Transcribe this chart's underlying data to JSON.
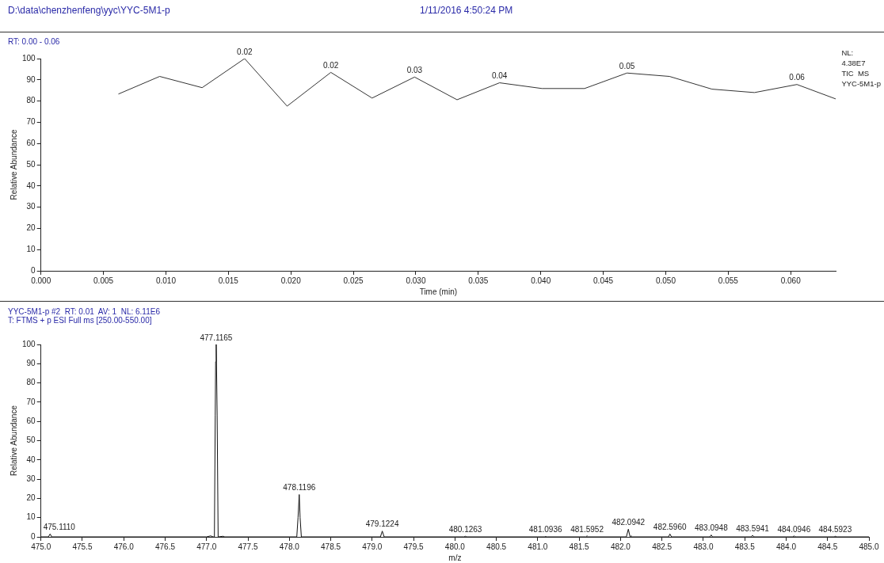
{
  "chart_data": [
    {
      "type": "line",
      "title": "D:\\data\\chenzhenfeng\\yyc\\YYC-5M1-p",
      "subtitle": "1/11/2016 4:50:24 PM",
      "xlabel": "Time (min)",
      "ylabel": "Relative Abundance",
      "x": [
        0.0062,
        0.0095,
        0.0129,
        0.0163,
        0.0197,
        0.0232,
        0.0265,
        0.0299,
        0.0333,
        0.0367,
        0.0401,
        0.0435,
        0.0469,
        0.0503,
        0.0537,
        0.0571,
        0.0605,
        0.0636
      ],
      "series": [
        {
          "color": "#333333",
          "values": [
            83.3,
            91.6,
            86.3,
            100,
            77.6,
            93.5,
            81.4,
            91.3,
            80.6,
            88.6,
            85.9,
            85.9,
            93.2,
            91.6,
            85.6,
            84,
            87.8,
            81
          ]
        }
      ],
      "xlim": [
        0,
        0.0636
      ],
      "xticks": [
        {
          "value": 0,
          "label": "0.000"
        },
        {
          "value": 0.005,
          "label": "0.005"
        },
        {
          "value": 0.01,
          "label": "0.010"
        },
        {
          "value": 0.015,
          "label": "0.015"
        },
        {
          "value": 0.02,
          "label": "0.020"
        },
        {
          "value": 0.025,
          "label": "0.025"
        },
        {
          "value": 0.03,
          "label": "0.030"
        },
        {
          "value": 0.035,
          "label": "0.035"
        },
        {
          "value": 0.04,
          "label": "0.040"
        },
        {
          "value": 0.045,
          "label": "0.045"
        },
        {
          "value": 0.05,
          "label": "0.050"
        },
        {
          "value": 0.055,
          "label": "0.055"
        },
        {
          "value": 0.06,
          "label": "0.060"
        }
      ],
      "ylim": [
        0,
        100
      ],
      "yticks": [
        0,
        10,
        20,
        30,
        40,
        50,
        60,
        70,
        80,
        90,
        100
      ],
      "grid": false,
      "legend": false,
      "marker": "none",
      "line_style": "solid",
      "annotations": [
        "RT: 0.00 - 0.06",
        "NL:\n4.38E7\nTIC  MS\nYYC-5M1-p",
        {
          "text": "0.02",
          "x": 0.0163,
          "y": 100
        },
        {
          "text": "0.02",
          "x": 0.0232,
          "y": 93.5
        },
        {
          "text": "0.03",
          "x": 0.0299,
          "y": 91.3
        },
        {
          "text": "0.04",
          "x": 0.0367,
          "y": 88.6
        },
        {
          "text": "0.05",
          "x": 0.0469,
          "y": 93.2
        },
        {
          "text": "0.06",
          "x": 0.0605,
          "y": 87.8
        }
      ]
    },
    {
      "type": "line",
      "title": "YYC-5M1-p #2  RT: 0.01  AV: 1  NL: 6.11E6",
      "subtitle": "T: FTMS + p ESI Full ms [250.00-550.00]",
      "xlabel": "m/z",
      "ylabel": "Relative Abundance",
      "x": [
        475.0,
        475.09,
        475.111,
        475.13,
        477.0,
        477.05,
        477.08,
        477.095,
        477.105,
        477.11,
        477.1165,
        477.12,
        477.128,
        477.14,
        477.2,
        477.22,
        478.09,
        478.105,
        478.1196,
        478.13,
        478.145,
        479.1,
        479.1224,
        479.145,
        480.11,
        480.1263,
        480.14,
        481.08,
        481.0936,
        481.11,
        481.58,
        481.5952,
        481.61,
        482.07,
        482.0942,
        482.115,
        482.13,
        482.145,
        482.58,
        482.596,
        482.615,
        483.08,
        483.0948,
        483.11,
        483.58,
        483.5941,
        483.61,
        484.08,
        484.0946,
        484.11,
        484.58,
        484.5923,
        484.61,
        485.0
      ],
      "series": [
        {
          "color": "#111111",
          "values": [
            0,
            0,
            1.5,
            0,
            0,
            0.5,
            0,
            0,
            63,
            91,
            100,
            91,
            63,
            0,
            0.3,
            0,
            0,
            10,
            22,
            10,
            0,
            0,
            3,
            0,
            0,
            0.3,
            0,
            0,
            0.2,
            0,
            0,
            0.5,
            0,
            0,
            4,
            0,
            0.5,
            0,
            0,
            1.5,
            0,
            0,
            1,
            0,
            0,
            0.8,
            0,
            0,
            0.5,
            0,
            0,
            0.3,
            0,
            0
          ]
        }
      ],
      "xlim": [
        475,
        485
      ],
      "xticks": [
        {
          "value": 475,
          "label": "475.0"
        },
        475.5,
        {
          "value": 476,
          "label": "476.0"
        },
        476.5,
        {
          "value": 477,
          "label": "477.0"
        },
        477.5,
        {
          "value": 478,
          "label": "478.0"
        },
        478.5,
        {
          "value": 479,
          "label": "479.0"
        },
        479.5,
        {
          "value": 480,
          "label": "480.0"
        },
        480.5,
        {
          "value": 481,
          "label": "481.0"
        },
        481.5,
        {
          "value": 482,
          "label": "482.0"
        },
        482.5,
        {
          "value": 483,
          "label": "483.0"
        },
        483.5,
        {
          "value": 484,
          "label": "484.0"
        },
        484.5,
        {
          "value": 485,
          "label": "485.0"
        }
      ],
      "ylim": [
        0,
        100
      ],
      "yticks": [
        0,
        10,
        20,
        30,
        40,
        50,
        60,
        70,
        80,
        90,
        100
      ],
      "grid": false,
      "legend": false,
      "marker": "none",
      "line_style": "solid",
      "annotations": [
        {
          "text": "475.1110",
          "x": 475.111,
          "y": 1.5
        },
        {
          "text": "477.1165",
          "x": 477.1165,
          "y": 100
        },
        {
          "text": "478.1196",
          "x": 478.1196,
          "y": 22
        },
        {
          "text": "479.1224",
          "x": 479.1224,
          "y": 3
        },
        {
          "text": "480.1263",
          "x": 480.1263,
          "y": 0.3
        },
        {
          "text": "481.0936",
          "x": 481.0936,
          "y": 0.2
        },
        {
          "text": "481.5952",
          "x": 481.5952,
          "y": 0.5
        },
        {
          "text": "482.0942",
          "x": 482.0942,
          "y": 4
        },
        {
          "text": "482.5960",
          "x": 482.596,
          "y": 1.5
        },
        {
          "text": "483.0948",
          "x": 483.0948,
          "y": 1
        },
        {
          "text": "483.5941",
          "x": 483.5941,
          "y": 0.8
        },
        {
          "text": "484.0946",
          "x": 484.0946,
          "y": 0.5
        },
        {
          "text": "484.5923",
          "x": 484.5923,
          "y": 0.3
        }
      ]
    }
  ]
}
